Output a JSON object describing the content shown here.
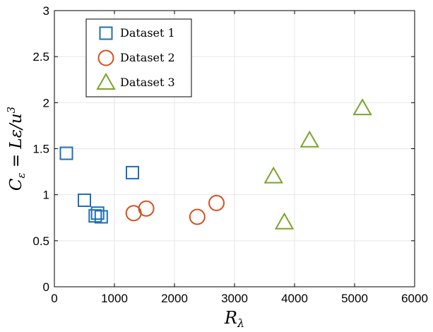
{
  "chart_data": {
    "type": "scatter",
    "title": "",
    "xlabel": "R_λ",
    "ylabel": "C_ε = Lε/u^3",
    "xlim": [
      0,
      6000
    ],
    "ylim": [
      0,
      3
    ],
    "xticks": [
      0,
      1000,
      2000,
      3000,
      4000,
      5000,
      6000
    ],
    "yticks": [
      0,
      0.5,
      1,
      1.5,
      2,
      2.5,
      3
    ],
    "xtick_labels": [
      "0",
      "1000",
      "2000",
      "3000",
      "4000",
      "5000",
      "6000"
    ],
    "ytick_labels": [
      "0",
      "0.5",
      "1",
      "1.5",
      "2",
      "2.5",
      "3"
    ],
    "grid": true,
    "legend_position": "top-left",
    "series": [
      {
        "name": "Dataset 1",
        "marker": "square",
        "color": "#1f6fb4",
        "points": [
          {
            "x": 200,
            "y": 1.45
          },
          {
            "x": 500,
            "y": 0.94
          },
          {
            "x": 720,
            "y": 0.8
          },
          {
            "x": 680,
            "y": 0.77
          },
          {
            "x": 780,
            "y": 0.76
          },
          {
            "x": 1300,
            "y": 1.24
          }
        ]
      },
      {
        "name": "Dataset 2",
        "marker": "circle",
        "color": "#d4501e",
        "points": [
          {
            "x": 1320,
            "y": 0.8
          },
          {
            "x": 1530,
            "y": 0.85
          },
          {
            "x": 2380,
            "y": 0.76
          },
          {
            "x": 2700,
            "y": 0.91
          }
        ]
      },
      {
        "name": "Dataset 3",
        "marker": "triangle",
        "color": "#7aa42a",
        "points": [
          {
            "x": 3650,
            "y": 1.2
          },
          {
            "x": 3830,
            "y": 0.7
          },
          {
            "x": 4250,
            "y": 1.59
          },
          {
            "x": 5130,
            "y": 1.94
          }
        ]
      }
    ]
  }
}
